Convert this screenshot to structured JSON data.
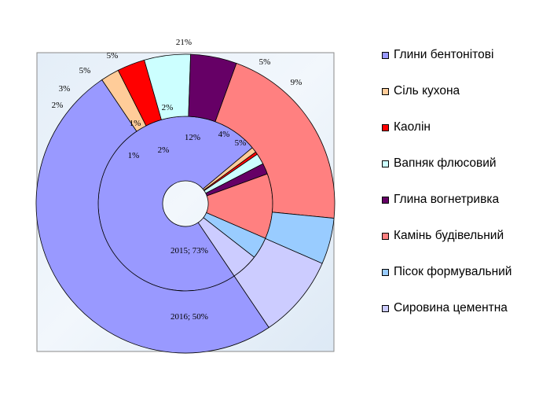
{
  "chart_data": {
    "type": "donut",
    "categories": [
      "Глини бентонітові",
      "Сіль кухона",
      "Каолін",
      "Вапняк флюсовий",
      "Глина вогнетривка",
      "Камінь будівельний",
      "Пісок формувальний",
      "Сировина цементна"
    ],
    "colors": [
      "#9999ff",
      "#ffcc99",
      "#ff0000",
      "#ccffff",
      "#660066",
      "#ff8080",
      "#99ccff",
      "#ccccff"
    ],
    "series": [
      {
        "name": "2015",
        "ring": "inner",
        "values": [
          73,
          1,
          0.5,
          2,
          2,
          12,
          4,
          5
        ],
        "labels": [
          "2015; 73%",
          "1%",
          "",
          "2%",
          "2%",
          "12%",
          "4%",
          "5%"
        ]
      },
      {
        "name": "2016",
        "ring": "outer",
        "values": [
          50,
          2,
          3,
          5,
          5,
          21,
          5,
          9
        ],
        "labels": [
          "2016; 50%",
          "2%",
          "3%",
          "5%",
          "5%",
          "21%",
          "5%",
          "9%"
        ]
      }
    ],
    "extra_labels": [
      "1%"
    ],
    "legend_position": "right"
  }
}
